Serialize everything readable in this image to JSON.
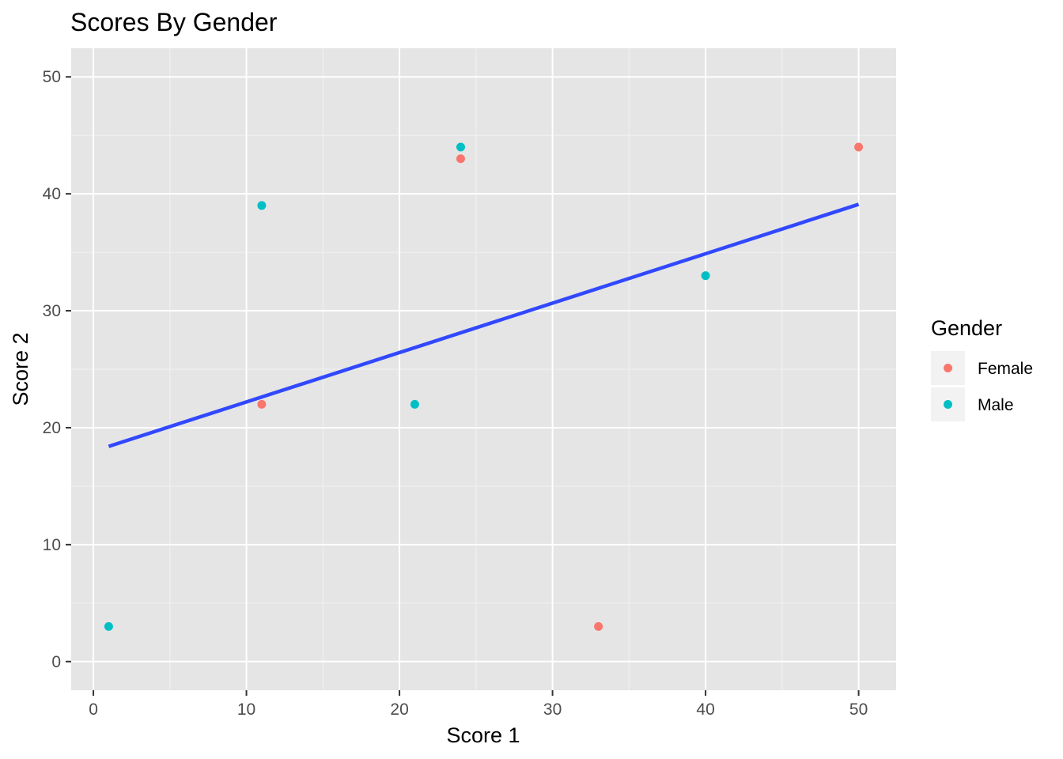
{
  "chart_data": {
    "type": "scatter",
    "title": "Scores By Gender",
    "xlabel": "Score 1",
    "ylabel": "Score 2",
    "xlim": [
      -1.45,
      52.45
    ],
    "ylim": [
      -2.45,
      52.45
    ],
    "x_ticks": [
      0,
      10,
      20,
      30,
      40,
      50
    ],
    "y_ticks": [
      0,
      10,
      20,
      30,
      40,
      50
    ],
    "x_tick_labels": [
      "0",
      "10",
      "20",
      "30",
      "40",
      "50"
    ],
    "y_tick_labels": [
      "0",
      "10",
      "20",
      "30",
      "40",
      "50"
    ],
    "grid": true,
    "legend": {
      "title": "Gender",
      "position": "right",
      "entries": [
        {
          "label": "Female",
          "color": "#F8766D"
        },
        {
          "label": "Male",
          "color": "#00BFC4"
        }
      ]
    },
    "series": [
      {
        "name": "Female",
        "color": "#F8766D",
        "points": [
          {
            "x": 11,
            "y": 22
          },
          {
            "x": 24,
            "y": 43
          },
          {
            "x": 33,
            "y": 3
          },
          {
            "x": 50,
            "y": 44
          }
        ]
      },
      {
        "name": "Male",
        "color": "#00BFC4",
        "points": [
          {
            "x": 1,
            "y": 3
          },
          {
            "x": 11,
            "y": 39
          },
          {
            "x": 21,
            "y": 22
          },
          {
            "x": 24,
            "y": 44
          },
          {
            "x": 40,
            "y": 33
          }
        ]
      }
    ],
    "trend_line": {
      "color": "#3148FF",
      "x": [
        1,
        50
      ],
      "y": [
        18.4,
        39.1
      ]
    }
  }
}
